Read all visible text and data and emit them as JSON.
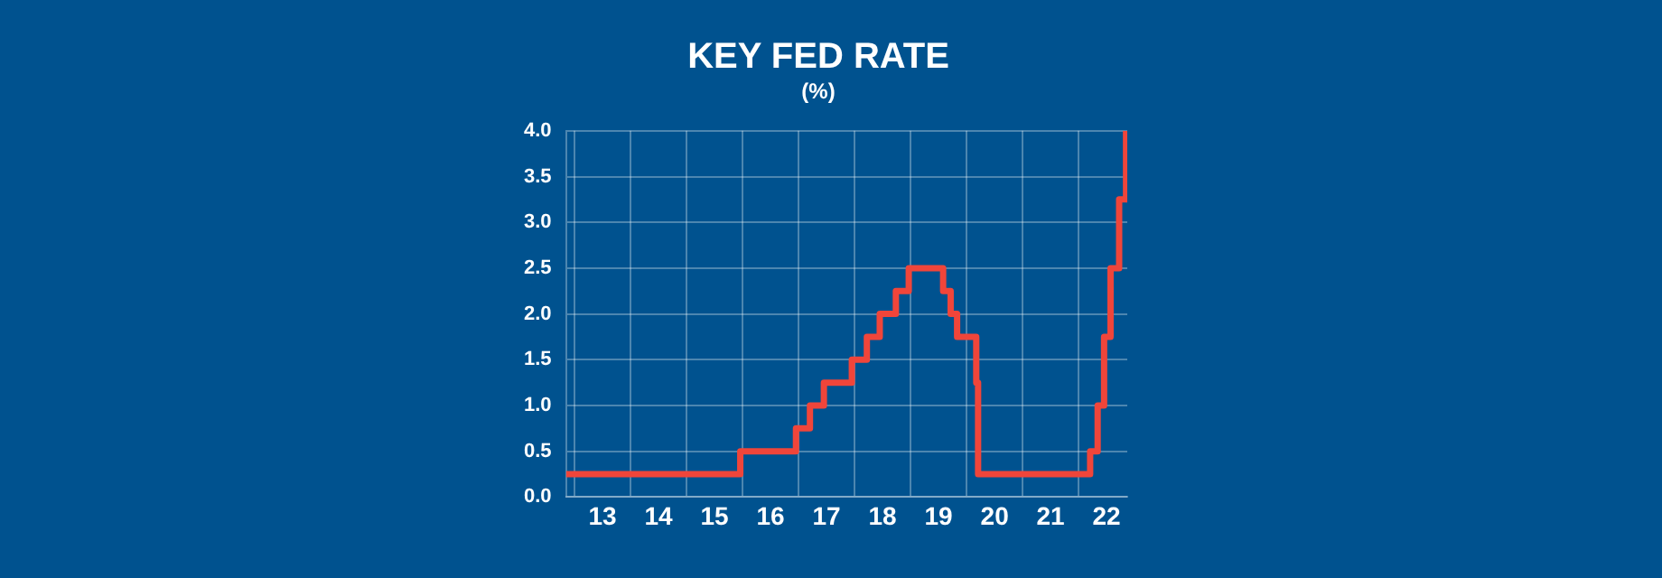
{
  "chart_data": {
    "type": "step",
    "title": "KEY FED RATE",
    "subtitle": "(%)",
    "x": [
      "2012-11-06",
      "2015-12-17",
      "2016-12-15",
      "2017-03-16",
      "2017-06-15",
      "2017-12-14",
      "2018-03-22",
      "2018-06-14",
      "2018-09-27",
      "2018-12-20",
      "2019-08-01",
      "2019-09-19",
      "2019-10-31",
      "2020-03-04",
      "2020-03-16",
      "2022-03-17",
      "2022-05-05",
      "2022-06-16",
      "2022-07-28",
      "2022-09-22",
      "2022-11-06"
    ],
    "series": [
      {
        "color": "#f0453a",
        "values": [
          0.25,
          0.5,
          0.75,
          1.0,
          1.25,
          1.5,
          1.75,
          2.0,
          2.25,
          2.5,
          2.25,
          2.0,
          1.75,
          1.25,
          0.25,
          0.5,
          1.0,
          1.75,
          2.5,
          3.25,
          4.0
        ]
      }
    ],
    "xlim": [
      "2012-11-06",
      "2022-11-14"
    ],
    "xticks": [
      {
        "value": "2013-01-01",
        "label": null
      },
      {
        "value": "2013-07-02",
        "label": "13"
      },
      {
        "value": "2014-01-01",
        "label": null
      },
      {
        "value": "2014-07-02",
        "label": "14"
      },
      {
        "value": "2015-01-01",
        "label": null
      },
      {
        "value": "2015-07-02",
        "label": "15"
      },
      {
        "value": "2016-01-01",
        "label": null
      },
      {
        "value": "2016-07-02",
        "label": "16"
      },
      {
        "value": "2017-01-01",
        "label": null
      },
      {
        "value": "2017-07-02",
        "label": "17"
      },
      {
        "value": "2018-01-01",
        "label": null
      },
      {
        "value": "2018-07-02",
        "label": "18"
      },
      {
        "value": "2019-01-01",
        "label": null
      },
      {
        "value": "2019-07-02",
        "label": "19"
      },
      {
        "value": "2020-01-01",
        "label": null
      },
      {
        "value": "2020-07-02",
        "label": "20"
      },
      {
        "value": "2021-01-01",
        "label": null
      },
      {
        "value": "2021-07-02",
        "label": "21"
      },
      {
        "value": "2022-01-01",
        "label": null
      },
      {
        "value": "2022-07-02",
        "label": "22"
      }
    ],
    "ylim": [
      0,
      4
    ],
    "yticks": [
      {
        "value": 0,
        "label": "0.0"
      },
      {
        "value": 0.5,
        "label": "0.5"
      },
      {
        "value": 1,
        "label": "1.0"
      },
      {
        "value": 1.5,
        "label": "1.5"
      },
      {
        "value": 2,
        "label": "2.0"
      },
      {
        "value": 2.5,
        "label": "2.5"
      },
      {
        "value": 3,
        "label": "3.0"
      },
      {
        "value": 3.5,
        "label": "3.5"
      },
      {
        "value": 4,
        "label": "4.0"
      }
    ],
    "grid": true,
    "legend": false,
    "marker": "none",
    "line_style": "solid"
  }
}
